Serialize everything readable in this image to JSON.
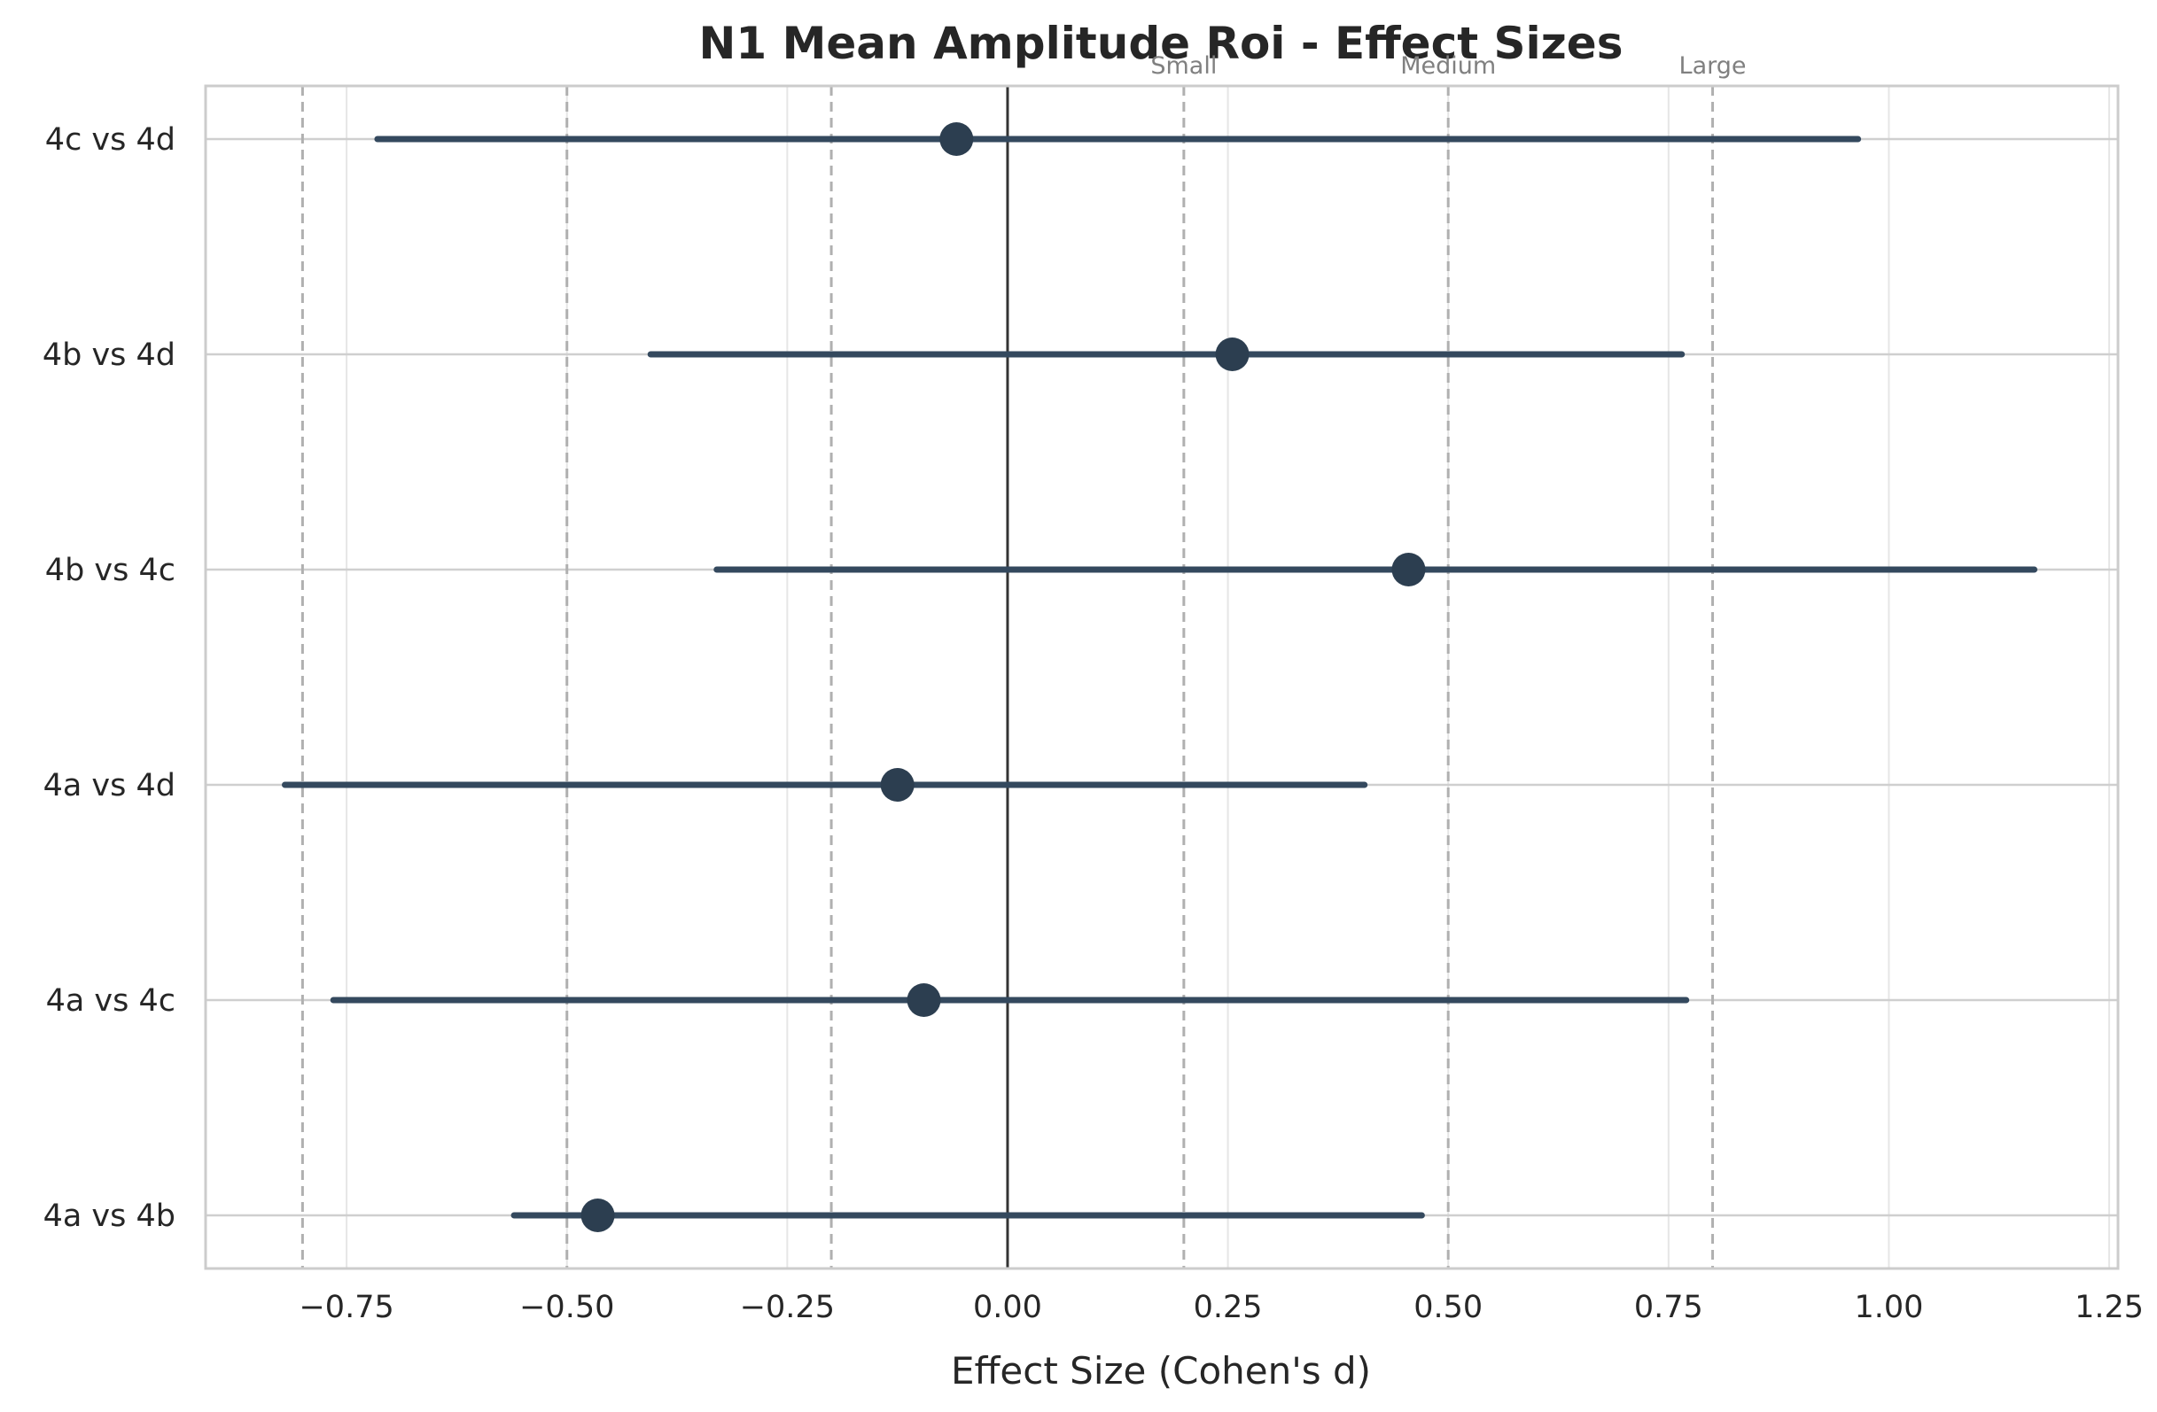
{
  "chart_data": {
    "type": "forest",
    "title": "N1 Mean Amplitude Roi - Effect Sizes",
    "xlabel": "Effect Size (Cohen's d)",
    "ylabel": "",
    "xlim": [
      -0.91,
      1.26
    ],
    "xticks": [
      -0.75,
      -0.5,
      -0.25,
      0.0,
      0.25,
      0.5,
      0.75,
      1.0,
      1.25
    ],
    "xtick_labels": [
      "−0.75",
      "−0.50",
      "−0.25",
      "0.00",
      "0.25",
      "0.50",
      "0.75",
      "1.00",
      "1.25"
    ],
    "grid": true,
    "comparisons": [
      {
        "label": "4a vs 4b",
        "d": -0.465,
        "ci_low": -0.56,
        "ci_high": 0.47
      },
      {
        "label": "4a vs 4c",
        "d": -0.095,
        "ci_low": -0.765,
        "ci_high": 0.77
      },
      {
        "label": "4a vs 4d",
        "d": -0.125,
        "ci_low": -0.82,
        "ci_high": 0.405
      },
      {
        "label": "4b vs 4c",
        "d": 0.455,
        "ci_low": -0.33,
        "ci_high": 1.165
      },
      {
        "label": "4b vs 4d",
        "d": 0.255,
        "ci_low": -0.405,
        "ci_high": 0.765
      },
      {
        "label": "4c vs 4d",
        "d": -0.058,
        "ci_low": -0.715,
        "ci_high": 0.965
      }
    ],
    "reference_lines": [
      {
        "value": -0.8,
        "label": ""
      },
      {
        "value": -0.5,
        "label": ""
      },
      {
        "value": -0.2,
        "label": ""
      },
      {
        "value": 0.2,
        "label": "Small"
      },
      {
        "value": 0.5,
        "label": "Medium"
      },
      {
        "value": 0.8,
        "label": "Large"
      }
    ],
    "zero_line": 0,
    "colors": {
      "marker": "#2c3e50",
      "ci_line": "#34495e",
      "zero_line": "#333333",
      "reference_line": "#b0b0b0",
      "grid": "#e6e6e6",
      "spine": "#cccccc"
    }
  }
}
